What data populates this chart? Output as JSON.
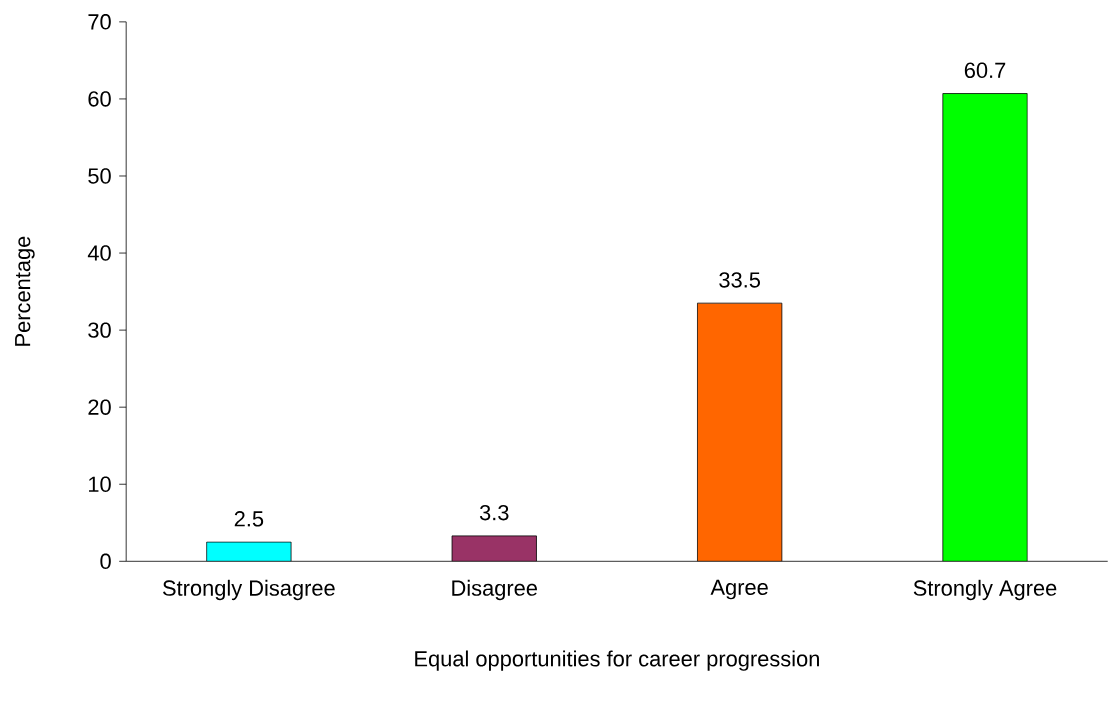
{
  "chart_data": {
    "type": "bar",
    "xlabel": "Equal opportunities for career progression",
    "ylabel": "Percentage",
    "categories": [
      "Strongly Disagree",
      "Disagree",
      "Agree",
      "Strongly Agree"
    ],
    "values": [
      2.5,
      3.3,
      33.5,
      60.7
    ],
    "colors": [
      "#00ffff",
      "#993366",
      "#ff6600",
      "#00ff00"
    ],
    "ylim": [
      0,
      70
    ],
    "yticks": [
      0,
      10,
      20,
      30,
      40,
      50,
      60,
      70
    ],
    "data_labels": true,
    "grid": false
  }
}
